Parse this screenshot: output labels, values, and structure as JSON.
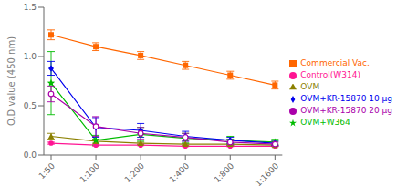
{
  "chart_data": {
    "type": "line",
    "categories": [
      "1:50",
      "1:100",
      "1:200",
      "1:400",
      "1:800",
      "1:1600"
    ],
    "y_label": "O.D value (450 nm)",
    "ylim": [
      0.0,
      1.5
    ],
    "yticks": [
      {
        "value": 0.0,
        "label": "0.0"
      },
      0.5,
      {
        "value": 1.0,
        "label": "1.0"
      },
      1.5
    ],
    "grid": false,
    "legend": "right",
    "series": [
      {
        "name": "Control(W314)",
        "color": "#FF1493",
        "marker": "circle",
        "line_style": "solid",
        "values": [
          0.12,
          0.1,
          0.1,
          0.09,
          0.09,
          0.09
        ],
        "errors": [
          0.01,
          0.01,
          0.005,
          0.005,
          0.005,
          0.005
        ]
      },
      {
        "name": "Commercial Vac.",
        "color": "#FF6600",
        "marker": "square",
        "line_style": "solid",
        "values": [
          1.22,
          1.1,
          1.01,
          0.91,
          0.81,
          0.71
        ],
        "errors": [
          0.05,
          0.04,
          0.04,
          0.04,
          0.04,
          0.04
        ]
      },
      {
        "name": "OVM",
        "color": "#8B8000",
        "marker": "triangle",
        "line_style": "solid",
        "values": [
          0.19,
          0.14,
          0.12,
          0.11,
          0.11,
          0.1
        ],
        "errors": [
          0.03,
          0.02,
          0.01,
          0.01,
          0.01,
          0.01
        ]
      },
      {
        "name": "OVM+W364",
        "color": "#00BB00",
        "marker": "star",
        "line_style": "solid",
        "values": [
          0.73,
          0.15,
          0.21,
          0.17,
          0.15,
          0.13
        ],
        "errors": [
          0.32,
          0.05,
          0.07,
          0.05,
          0.04,
          0.03
        ]
      },
      {
        "name": "OVM+KR-15870 10 μg",
        "color": "#0000EE",
        "marker": "diamond",
        "line_style": "solid",
        "values": [
          0.88,
          0.28,
          0.25,
          0.19,
          0.15,
          0.12
        ],
        "errors": [
          0.07,
          0.1,
          0.07,
          0.05,
          0.03,
          0.02
        ]
      },
      {
        "name": "OVM+KR-15870 20 μg",
        "color": "#AA00AA",
        "marker": "open_circle",
        "line_style": "solid",
        "values": [
          0.62,
          0.29,
          0.22,
          0.18,
          0.13,
          0.11
        ],
        "errors": [
          0.08,
          0.1,
          0.06,
          0.04,
          0.03,
          0.02
        ]
      }
    ]
  }
}
